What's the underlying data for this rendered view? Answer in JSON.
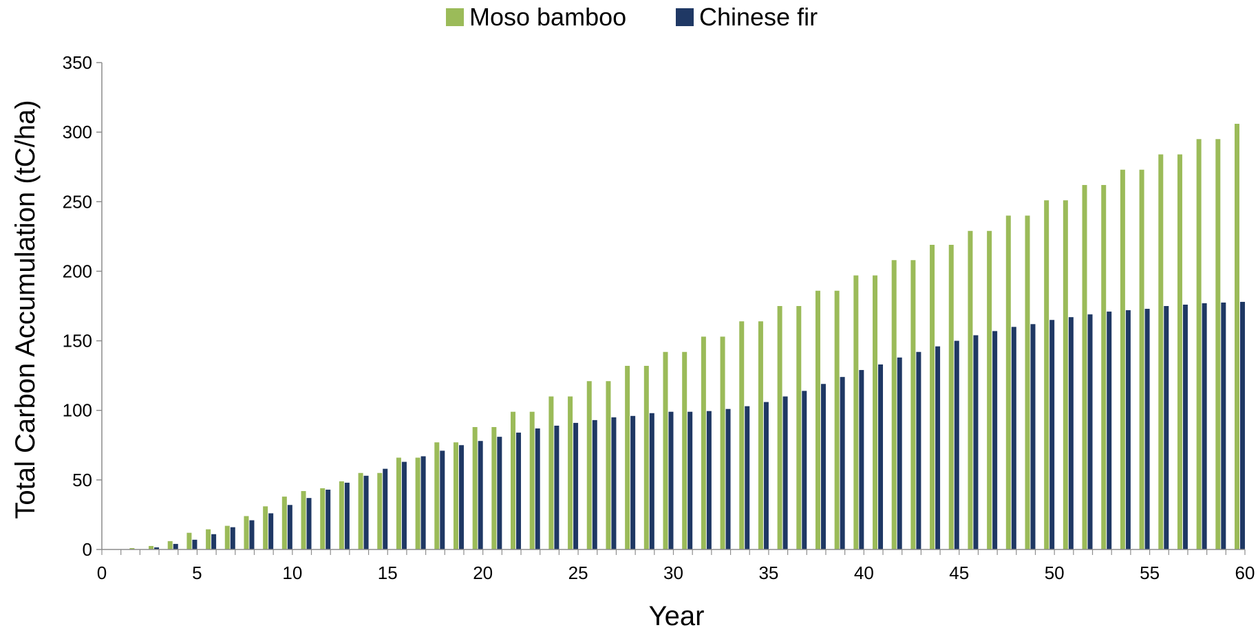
{
  "chart_data": {
    "type": "bar",
    "xlabel": "Year",
    "ylabel": "Total Carbon Accumulation (tC/ha)",
    "ylim": [
      0,
      350
    ],
    "xlim": [
      0,
      60
    ],
    "grid": false,
    "legend": "top-center",
    "x_ticks": [
      "0",
      "5",
      "10",
      "15",
      "20",
      "25",
      "30",
      "35",
      "40",
      "45",
      "50",
      "55",
      "60"
    ],
    "y_ticks": [
      "0",
      "50",
      "100",
      "150",
      "200",
      "250",
      "300",
      "350"
    ],
    "categories": [
      1,
      2,
      3,
      4,
      5,
      6,
      7,
      8,
      9,
      10,
      11,
      12,
      13,
      14,
      15,
      16,
      17,
      18,
      19,
      20,
      21,
      22,
      23,
      24,
      25,
      26,
      27,
      28,
      29,
      30,
      31,
      32,
      33,
      34,
      35,
      36,
      37,
      38,
      39,
      40,
      41,
      42,
      43,
      44,
      45,
      46,
      47,
      48,
      49,
      50,
      51,
      52,
      53,
      54,
      55,
      56,
      57,
      58,
      59,
      60
    ],
    "series": [
      {
        "name": "Moso bamboo",
        "color": "#9BBB59",
        "values": [
          0.2,
          1,
          2.5,
          6,
          12,
          14.5,
          17,
          24,
          31,
          38,
          42,
          44,
          49,
          55,
          55,
          66,
          66,
          77,
          77,
          88,
          88,
          99,
          99,
          110,
          110,
          121,
          121,
          132,
          132,
          142,
          142,
          153,
          153,
          164,
          164,
          175,
          175,
          186,
          186,
          197,
          197,
          208,
          208,
          219,
          219,
          229,
          229,
          240,
          240,
          251,
          251,
          262,
          262,
          273,
          273,
          284,
          284,
          295,
          295,
          306
        ]
      },
      {
        "name": "Chinese fir",
        "color": "#1F3864",
        "values": [
          0,
          0,
          1.5,
          4,
          7,
          11,
          16,
          21,
          26,
          32,
          37,
          43,
          48,
          53,
          58,
          63,
          67,
          71,
          75,
          78,
          81,
          84,
          87,
          89,
          91,
          93,
          95,
          96,
          98,
          99,
          99,
          99.5,
          101,
          103,
          106,
          110,
          114,
          119,
          124,
          129,
          133,
          138,
          142,
          146,
          150,
          154,
          157,
          160,
          162,
          165,
          167,
          169,
          171,
          172,
          173,
          175,
          176,
          177,
          177.5,
          178
        ]
      }
    ]
  }
}
